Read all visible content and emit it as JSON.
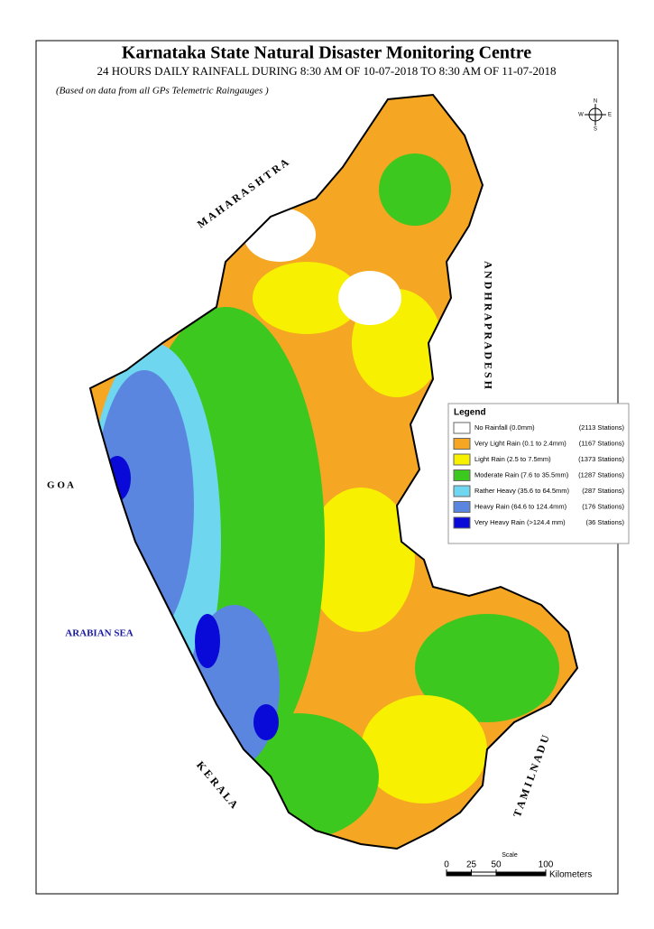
{
  "header": {
    "title": "Karnataka State Natural Disaster Monitoring Centre",
    "subtitle": "24 HOURS DAILY RAINFALL DURING 8:30 AM OF  10-07-2018 TO 8:30 AM OF 11-07-2018",
    "note": "(Based on data from all GPs Telemetric Raingauges )"
  },
  "compass": {
    "n": "N",
    "s": "S",
    "e": "E",
    "w": "W"
  },
  "neighbors": {
    "maharashtra": "M A H A R A S H T R A",
    "goa": "G O A",
    "arabian_sea": "ARABIAN SEA",
    "kerala": "K E R A L A",
    "tamil_nadu": "T A M I L   N A D U",
    "andhra_pradesh": "A N D H R A   P R A D E S H"
  },
  "legend": {
    "title": "Legend",
    "items": [
      {
        "label": "No Rainfall (0.0mm)",
        "stations": "(2113 Stations)",
        "color": "#ffffff"
      },
      {
        "label": "Very Light Rain (0.1 to 2.4mm)",
        "stations": "(1167 Stations)",
        "color": "#f5a623"
      },
      {
        "label": "Light Rain (2.5 to 7.5mm)",
        "stations": "(1373 Stations)",
        "color": "#f7f000"
      },
      {
        "label": "Moderate Rain (7.6 to 35.5mm)",
        "stations": "(1287 Stations)",
        "color": "#3cc81e"
      },
      {
        "label": "Rather Heavy (35.6 to 64.5mm)",
        "stations": "(287 Stations)",
        "color": "#6fd6f0"
      },
      {
        "label": "Heavy Rain (64.6 to 124.4mm)",
        "stations": "(176 Stations)",
        "color": "#5b86e0"
      },
      {
        "label": "Very Heavy Rain (>124.4 mm)",
        "stations": "(36 Stations)",
        "color": "#0a0ad8"
      }
    ]
  },
  "scale": {
    "title": "Scale",
    "ticks": [
      0,
      25,
      50,
      100
    ],
    "unit": "Kilometers"
  }
}
